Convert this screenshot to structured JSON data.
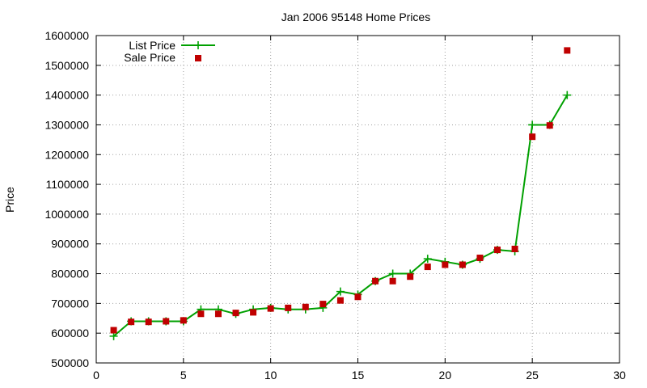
{
  "chart_data": {
    "type": "line",
    "title": "Jan 2006 95148 Home Prices",
    "xlabel": "",
    "ylabel": "Price",
    "xlim": [
      0,
      30
    ],
    "ylim": [
      500000,
      1600000
    ],
    "xticks": [
      0,
      5,
      10,
      15,
      20,
      25,
      30
    ],
    "yticks": [
      500000,
      600000,
      700000,
      800000,
      900000,
      1000000,
      1100000,
      1200000,
      1300000,
      1400000,
      1500000,
      1600000
    ],
    "grid": true,
    "legend_position": "top-left",
    "series": [
      {
        "name": "List Price",
        "style": "linespoints",
        "marker": "plus",
        "color": "#00a000",
        "x": [
          1,
          2,
          3,
          4,
          5,
          6,
          7,
          8,
          9,
          10,
          11,
          12,
          13,
          14,
          15,
          16,
          17,
          18,
          19,
          20,
          21,
          22,
          23,
          24,
          25,
          26,
          27
        ],
        "y": [
          590000,
          640000,
          640000,
          640000,
          640000,
          680000,
          680000,
          665000,
          680000,
          685000,
          680000,
          680000,
          685000,
          740000,
          730000,
          775000,
          800000,
          800000,
          850000,
          840000,
          830000,
          850000,
          880000,
          875000,
          1300000,
          1300000,
          1400000
        ]
      },
      {
        "name": "Sale Price",
        "style": "points",
        "marker": "square",
        "color": "#c00000",
        "x": [
          1,
          2,
          3,
          4,
          5,
          6,
          7,
          8,
          9,
          10,
          11,
          12,
          13,
          14,
          15,
          16,
          17,
          18,
          19,
          20,
          21,
          22,
          23,
          24,
          25,
          26,
          27
        ],
        "y": [
          610000,
          638000,
          638000,
          640000,
          643000,
          665000,
          665000,
          668000,
          670000,
          683000,
          685000,
          688000,
          698000,
          710000,
          722000,
          775000,
          775000,
          790000,
          823000,
          830000,
          830000,
          853000,
          880000,
          883000,
          1260000,
          1298000,
          1550000
        ]
      }
    ]
  }
}
